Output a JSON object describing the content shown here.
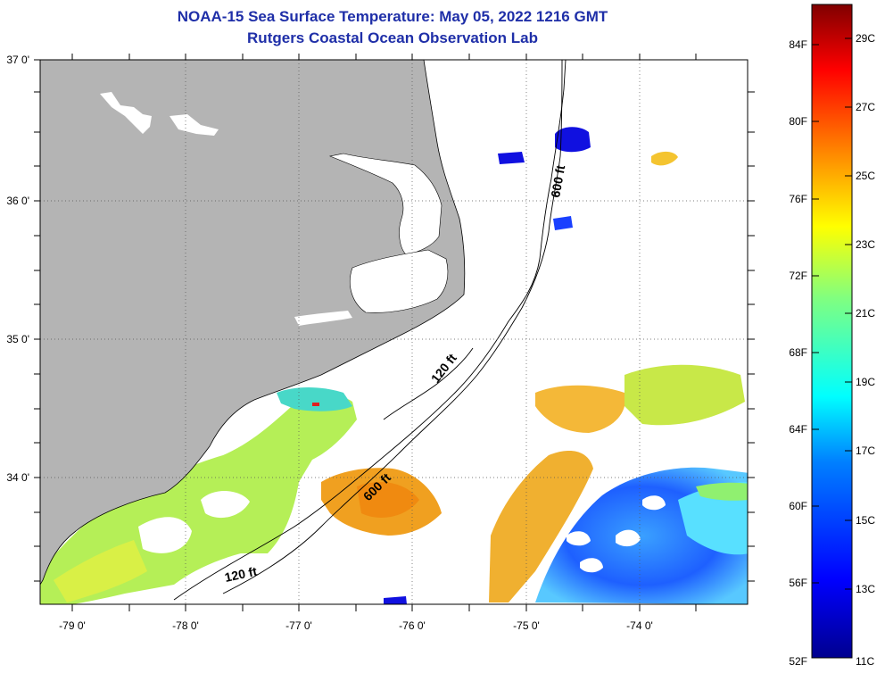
{
  "title": "NOAA-15 Sea Surface Temperature:  May 05, 2022 1216 GMT",
  "subtitle": "Rutgers Coastal Ocean Observation Lab",
  "lat_labels": [
    "37 0'",
    "36 0'",
    "35 0'",
    "34 0'"
  ],
  "lon_labels": [
    "-79 0'",
    "-78 0'",
    "-77 0'",
    "-76 0'",
    "-75 0'",
    "-74 0'"
  ],
  "isobaths": [
    {
      "label": "120 ft"
    },
    {
      "label": "600 ft"
    }
  ],
  "isobath_labels": [
    "600 ft",
    "120 ft",
    "600 ft",
    "120 ft"
  ],
  "colorbar": {
    "fahrenheit": [
      "84F",
      "80F",
      "76F",
      "72F",
      "68F",
      "64F",
      "60F",
      "56F",
      "52F"
    ],
    "celsius": [
      "29C",
      "27C",
      "25C",
      "23C",
      "21C",
      "19C",
      "17C",
      "15C",
      "13C",
      "11C"
    ],
    "gradient": [
      "#00008f",
      "#0000ff",
      "#0080ff",
      "#00ffff",
      "#80ff80",
      "#ffff00",
      "#ff8000",
      "#ff0000",
      "#800000"
    ]
  },
  "colors": {
    "land": "#b4b4b4",
    "ocean_nodata": "#ffffff",
    "title": "#1f2fa8"
  }
}
